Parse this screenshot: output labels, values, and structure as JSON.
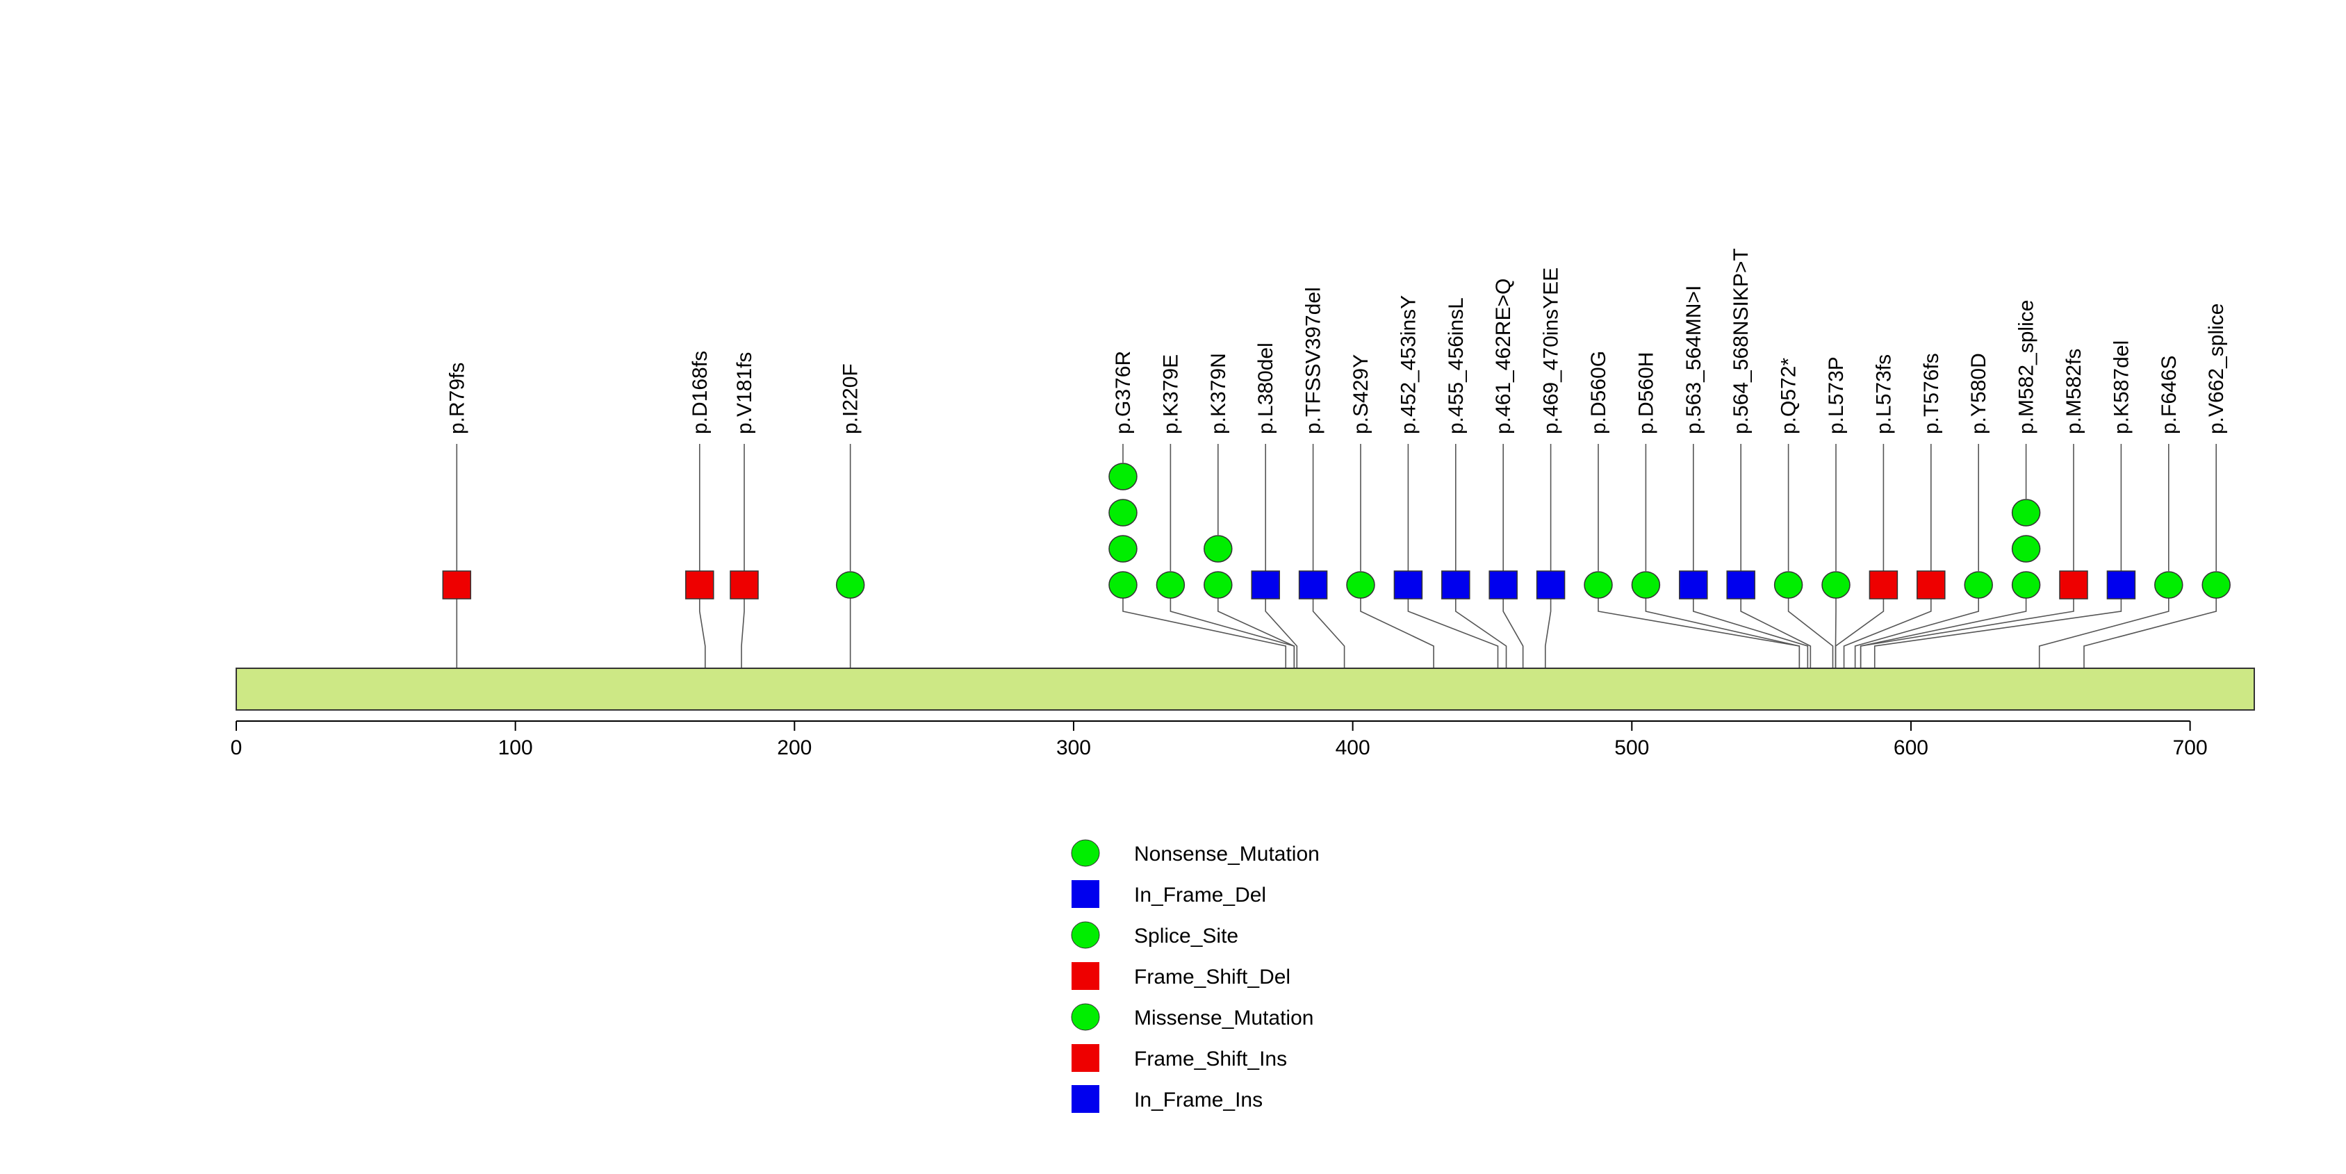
{
  "chart_data": {
    "type": "lollipop",
    "title": "",
    "xlabel": "",
    "ylabel": "",
    "xlim": [
      0,
      723
    ],
    "protein_length": 723,
    "x_ticks": [
      0,
      100,
      200,
      300,
      400,
      500,
      600,
      700
    ],
    "mutations": [
      {
        "label": "p.R79fs",
        "position": 79,
        "markers": [
          "Frame_Shift_Del"
        ]
      },
      {
        "label": "p.D168fs",
        "position": 168,
        "markers": [
          "Frame_Shift_Del"
        ]
      },
      {
        "label": "p.V181fs",
        "position": 181,
        "markers": [
          "Frame_Shift_Del"
        ]
      },
      {
        "label": "p.I220F",
        "position": 220,
        "markers": [
          "Missense_Mutation"
        ]
      },
      {
        "label": "p.G376R",
        "position": 376,
        "markers": [
          "Missense_Mutation",
          "Missense_Mutation",
          "Missense_Mutation",
          "Missense_Mutation"
        ]
      },
      {
        "label": "p.K379E",
        "position": 379,
        "markers": [
          "Missense_Mutation"
        ]
      },
      {
        "label": "p.K379N",
        "position": 379,
        "markers": [
          "Missense_Mutation",
          "Missense_Mutation"
        ]
      },
      {
        "label": "p.L380del",
        "position": 380,
        "markers": [
          "In_Frame_Del"
        ]
      },
      {
        "label": "p.TFSSV397del",
        "position": 397,
        "markers": [
          "In_Frame_Del"
        ]
      },
      {
        "label": "p.S429Y",
        "position": 429,
        "markers": [
          "Missense_Mutation"
        ]
      },
      {
        "label": "p.452_453insY",
        "position": 452,
        "markers": [
          "In_Frame_Ins"
        ]
      },
      {
        "label": "p.455_456insL",
        "position": 455,
        "markers": [
          "In_Frame_Ins"
        ]
      },
      {
        "label": "p.461_462RE>Q",
        "position": 461,
        "markers": [
          "In_Frame_Del"
        ]
      },
      {
        "label": "p.469_470insYEE",
        "position": 469,
        "markers": [
          "In_Frame_Ins"
        ]
      },
      {
        "label": "p.D560G",
        "position": 560,
        "markers": [
          "Missense_Mutation"
        ]
      },
      {
        "label": "p.D560H",
        "position": 560,
        "markers": [
          "Missense_Mutation"
        ]
      },
      {
        "label": "p.563_564MN>I",
        "position": 563,
        "markers": [
          "In_Frame_Del"
        ]
      },
      {
        "label": "p.564_568NSIKP>T",
        "position": 564,
        "markers": [
          "In_Frame_Del"
        ]
      },
      {
        "label": "p.Q572*",
        "position": 572,
        "markers": [
          "Nonsense_Mutation"
        ]
      },
      {
        "label": "p.L573P",
        "position": 573,
        "markers": [
          "Missense_Mutation"
        ]
      },
      {
        "label": "p.L573fs",
        "position": 573,
        "markers": [
          "Frame_Shift_Del"
        ]
      },
      {
        "label": "p.T576fs",
        "position": 576,
        "markers": [
          "Frame_Shift_Ins"
        ]
      },
      {
        "label": "p.Y580D",
        "position": 580,
        "markers": [
          "Missense_Mutation"
        ]
      },
      {
        "label": "p.M582_splice",
        "position": 582,
        "markers": [
          "Splice_Site",
          "Splice_Site",
          "Splice_Site"
        ]
      },
      {
        "label": "p.M582fs",
        "position": 582,
        "markers": [
          "Frame_Shift_Del"
        ]
      },
      {
        "label": "p.K587del",
        "position": 587,
        "markers": [
          "In_Frame_Del"
        ]
      },
      {
        "label": "p.F646S",
        "position": 646,
        "markers": [
          "Missense_Mutation"
        ]
      },
      {
        "label": "p.V662_splice",
        "position": 662,
        "markers": [
          "Splice_Site"
        ]
      }
    ],
    "legend": [
      {
        "label": "Nonsense_Mutation",
        "shape": "circle",
        "color": "#00ee00"
      },
      {
        "label": "In_Frame_Del",
        "shape": "square",
        "color": "#0000ee"
      },
      {
        "label": "Splice_Site",
        "shape": "circle",
        "color": "#00ee00"
      },
      {
        "label": "Frame_Shift_Del",
        "shape": "square",
        "color": "#ee0000"
      },
      {
        "label": "Missense_Mutation",
        "shape": "circle",
        "color": "#00ee00"
      },
      {
        "label": "Frame_Shift_Ins",
        "shape": "square",
        "color": "#ee0000"
      },
      {
        "label": "In_Frame_Ins",
        "shape": "square",
        "color": "#0000ee"
      }
    ],
    "colors": {
      "protein_bar": "#cde885",
      "line": "#555555",
      "outline": "#333333"
    }
  }
}
